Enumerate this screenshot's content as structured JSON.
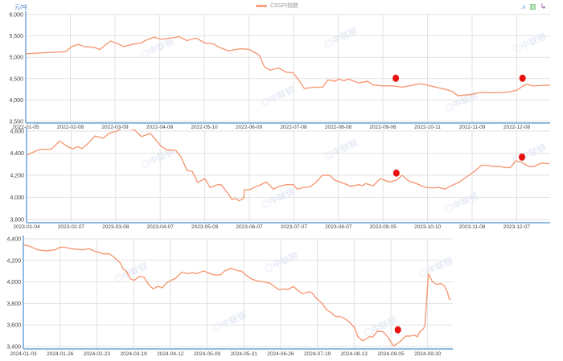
{
  "header": {
    "unit": "元/吨",
    "legend": "CSSPI指数",
    "watermark": "中联钢"
  },
  "toolbar": [
    {
      "name": "line-chart-icon",
      "glyph": "⩘",
      "color": "#5b9bd5"
    },
    {
      "name": "bar-chart-icon",
      "glyph": "▥",
      "color": "#4caf50"
    },
    {
      "name": "restore-icon",
      "glyph": "↳",
      "color": "#8e44ad"
    }
  ],
  "colors": {
    "line": "#f59a76",
    "marker": "#e8110f",
    "axis": "#6fa3d8",
    "grid": "#e2e2e2"
  },
  "chart_data": [
    {
      "type": "line",
      "title": "",
      "ylabel": "元/吨",
      "ylim": [
        3500,
        6000
      ],
      "yticks": [
        3500,
        4000,
        4500,
        5000,
        5500,
        6000
      ],
      "yticklabels": [
        "3,500",
        "4,000",
        "4,500",
        "5,000",
        "5,500",
        "6,000"
      ],
      "xticklabels": [
        "2022-01-05",
        "2022-02-08",
        "2022-03-09",
        "2022-04-08",
        "2022-05-10",
        "2022-06-09",
        "2022-07-08",
        "2022-08-08",
        "2022-09-06",
        "2022-10-11",
        "2022-11-09",
        "2022-12-08"
      ],
      "xmax": 11.75,
      "series": [
        {
          "name": "CSSPI指数",
          "points": [
            [
              0,
              5080
            ],
            [
              0.49,
              5110
            ],
            [
              0.89,
              5130
            ],
            [
              1.03,
              5250
            ],
            [
              1.18,
              5300
            ],
            [
              1.3,
              5250
            ],
            [
              1.54,
              5230
            ],
            [
              1.66,
              5180
            ],
            [
              1.9,
              5380
            ],
            [
              2.03,
              5330
            ],
            [
              2.19,
              5250
            ],
            [
              2.43,
              5310
            ],
            [
              2.59,
              5330
            ],
            [
              2.67,
              5390
            ],
            [
              2.88,
              5470
            ],
            [
              3.02,
              5420
            ],
            [
              3.24,
              5450
            ],
            [
              3.44,
              5480
            ],
            [
              3.61,
              5390
            ],
            [
              3.81,
              5450
            ],
            [
              4.02,
              5330
            ],
            [
              4.21,
              5310
            ],
            [
              4.34,
              5230
            ],
            [
              4.54,
              5150
            ],
            [
              4.82,
              5200
            ],
            [
              5.01,
              5180
            ],
            [
              5.23,
              5050
            ],
            [
              5.35,
              4770
            ],
            [
              5.47,
              4700
            ],
            [
              5.67,
              4750
            ],
            [
              5.83,
              4650
            ],
            [
              5.99,
              4640
            ],
            [
              6.12,
              4460
            ],
            [
              6.24,
              4270
            ],
            [
              6.48,
              4300
            ],
            [
              6.65,
              4300
            ],
            [
              6.77,
              4470
            ],
            [
              6.93,
              4440
            ],
            [
              7.01,
              4490
            ],
            [
              7.13,
              4450
            ],
            [
              7.23,
              4490
            ],
            [
              7.46,
              4400
            ],
            [
              7.66,
              4440
            ],
            [
              7.78,
              4350
            ],
            [
              8.02,
              4330
            ],
            [
              8.23,
              4330
            ],
            [
              8.43,
              4300
            ],
            [
              8.59,
              4330
            ],
            [
              8.83,
              4380
            ],
            [
              8.99,
              4350
            ],
            [
              9.4,
              4250
            ],
            [
              9.56,
              4200
            ],
            [
              9.68,
              4100
            ],
            [
              9.98,
              4130
            ],
            [
              10.21,
              4180
            ],
            [
              10.37,
              4170
            ],
            [
              10.78,
              4180
            ],
            [
              11.0,
              4230
            ],
            [
              11.1,
              4300
            ],
            [
              11.22,
              4370
            ],
            [
              11.35,
              4330
            ],
            [
              11.75,
              4350
            ]
          ]
        }
      ],
      "markers": [
        [
          8.29,
          4510
        ],
        [
          11.13,
          4510
        ]
      ]
    },
    {
      "type": "line",
      "title": "",
      "ylim": [
        3800,
        4600
      ],
      "yticks": [
        3800,
        4000,
        4200,
        4400,
        4600
      ],
      "yticklabels": [
        "3,800",
        "4,000",
        "4,200",
        "4,400",
        "4,600"
      ],
      "xticklabels": [
        "2023-01-04",
        "2023-02-07",
        "2023-03-08",
        "2023-04-07",
        "2023-05-09",
        "2023-06-07",
        "2023-07-07",
        "2023-08-07",
        "2023-09-05",
        "2023-10-10",
        "2023-11-08",
        "2023-12-07"
      ],
      "xmax": 11.74,
      "series": [
        {
          "name": "CSSPI指数",
          "points": [
            [
              0,
              4380
            ],
            [
              0.15,
              4410
            ],
            [
              0.31,
              4435
            ],
            [
              0.55,
              4435
            ],
            [
              0.75,
              4510
            ],
            [
              0.92,
              4460
            ],
            [
              1.04,
              4440
            ],
            [
              1.16,
              4460
            ],
            [
              1.24,
              4440
            ],
            [
              1.4,
              4495
            ],
            [
              1.53,
              4555
            ],
            [
              1.73,
              4535
            ],
            [
              1.85,
              4580
            ],
            [
              2.03,
              4600
            ],
            [
              2.18,
              4630
            ],
            [
              2.42,
              4610
            ],
            [
              2.58,
              4550
            ],
            [
              2.78,
              4580
            ],
            [
              2.95,
              4495
            ],
            [
              3.03,
              4460
            ],
            [
              3.15,
              4430
            ],
            [
              3.35,
              4425
            ],
            [
              3.47,
              4365
            ],
            [
              3.6,
              4245
            ],
            [
              3.72,
              4235
            ],
            [
              3.84,
              4135
            ],
            [
              4.0,
              4170
            ],
            [
              4.12,
              4090
            ],
            [
              4.29,
              4115
            ],
            [
              4.37,
              4115
            ],
            [
              4.53,
              4030
            ],
            [
              4.61,
              3980
            ],
            [
              4.69,
              3990
            ],
            [
              4.77,
              3970
            ],
            [
              4.87,
              3990
            ],
            [
              4.89,
              4070
            ],
            [
              5.02,
              4070
            ],
            [
              5.1,
              4090
            ],
            [
              5.26,
              4115
            ],
            [
              5.38,
              4140
            ],
            [
              5.54,
              4075
            ],
            [
              5.67,
              4100
            ],
            [
              5.83,
              4115
            ],
            [
              5.99,
              4115
            ],
            [
              6.07,
              4075
            ],
            [
              6.23,
              4090
            ],
            [
              6.36,
              4095
            ],
            [
              6.48,
              4130
            ],
            [
              6.64,
              4200
            ],
            [
              6.8,
              4200
            ],
            [
              6.92,
              4155
            ],
            [
              7.13,
              4125
            ],
            [
              7.29,
              4100
            ],
            [
              7.45,
              4115
            ],
            [
              7.53,
              4105
            ],
            [
              7.61,
              4125
            ],
            [
              7.78,
              4105
            ],
            [
              7.94,
              4170
            ],
            [
              8.14,
              4140
            ],
            [
              8.3,
              4155
            ],
            [
              8.43,
              4200
            ],
            [
              8.59,
              4145
            ],
            [
              8.75,
              4125
            ],
            [
              8.95,
              4090
            ],
            [
              9.12,
              4085
            ],
            [
              9.24,
              4090
            ],
            [
              9.4,
              4075
            ],
            [
              9.48,
              4095
            ],
            [
              9.72,
              4140
            ],
            [
              9.89,
              4190
            ],
            [
              10.05,
              4235
            ],
            [
              10.21,
              4290
            ],
            [
              10.33,
              4290
            ],
            [
              10.45,
              4280
            ],
            [
              10.62,
              4280
            ],
            [
              10.74,
              4270
            ],
            [
              10.86,
              4270
            ],
            [
              10.98,
              4330
            ],
            [
              11.1,
              4320
            ],
            [
              11.27,
              4280
            ],
            [
              11.39,
              4280
            ],
            [
              11.55,
              4310
            ],
            [
              11.74,
              4305
            ]
          ]
        }
      ],
      "markers": [
        [
          8.3,
          4220
        ],
        [
          11.12,
          4365
        ]
      ]
    },
    {
      "type": "line",
      "title": "",
      "ylim": [
        3400,
        4400
      ],
      "yticks": [
        3400,
        3600,
        3800,
        4000,
        4200,
        4400
      ],
      "yticklabels": [
        "3,400",
        "3,600",
        "3,800",
        "4,000",
        "4,200",
        "4,400"
      ],
      "xticklabels": [
        "2024-01-03",
        "2024-01-26",
        "2024-02-23",
        "2024-03-19",
        "2024-04-12",
        "2024-05-09",
        "2024-05-31",
        "2024-06-26",
        "2024-07-19",
        "2024-08-13",
        "2024-09-05",
        "2024-09-30"
      ],
      "xmax": 11.63,
      "series": [
        {
          "name": "CSSPI指数",
          "points": [
            [
              0,
              4343
            ],
            [
              0.16,
              4333
            ],
            [
              0.37,
              4300
            ],
            [
              0.49,
              4293
            ],
            [
              0.65,
              4288
            ],
            [
              0.89,
              4300
            ],
            [
              0.97,
              4318
            ],
            [
              1.1,
              4323
            ],
            [
              1.3,
              4308
            ],
            [
              1.62,
              4298
            ],
            [
              1.79,
              4308
            ],
            [
              1.95,
              4283
            ],
            [
              2.07,
              4275
            ],
            [
              2.19,
              4258
            ],
            [
              2.32,
              4263
            ],
            [
              2.44,
              4238
            ],
            [
              2.56,
              4200
            ],
            [
              2.64,
              4176
            ],
            [
              2.72,
              4119
            ],
            [
              2.8,
              4101
            ],
            [
              2.92,
              4027
            ],
            [
              3.01,
              4014
            ],
            [
              3.17,
              4052
            ],
            [
              3.29,
              4040
            ],
            [
              3.41,
              3977
            ],
            [
              3.53,
              3935
            ],
            [
              3.66,
              3958
            ],
            [
              3.78,
              3945
            ],
            [
              3.9,
              3990
            ],
            [
              4.02,
              4014
            ],
            [
              4.14,
              4032
            ],
            [
              4.31,
              4090
            ],
            [
              4.47,
              4077
            ],
            [
              4.59,
              4085
            ],
            [
              4.71,
              4077
            ],
            [
              4.91,
              4102
            ],
            [
              5.04,
              4082
            ],
            [
              5.2,
              4065
            ],
            [
              5.36,
              4065
            ],
            [
              5.48,
              4102
            ],
            [
              5.65,
              4126
            ],
            [
              5.85,
              4102
            ],
            [
              5.93,
              4102
            ],
            [
              6.05,
              4065
            ],
            [
              6.21,
              4027
            ],
            [
              6.38,
              4007
            ],
            [
              6.5,
              4002
            ],
            [
              6.7,
              3990
            ],
            [
              6.82,
              3960
            ],
            [
              6.95,
              3928
            ],
            [
              7.11,
              3935
            ],
            [
              7.19,
              3928
            ],
            [
              7.35,
              3958
            ],
            [
              7.47,
              3920
            ],
            [
              7.6,
              3890
            ],
            [
              7.76,
              3908
            ],
            [
              7.84,
              3903
            ],
            [
              7.96,
              3853
            ],
            [
              8.12,
              3803
            ],
            [
              8.25,
              3741
            ],
            [
              8.37,
              3716
            ],
            [
              8.49,
              3679
            ],
            [
              8.61,
              3679
            ],
            [
              8.77,
              3654
            ],
            [
              8.9,
              3617
            ],
            [
              9.02,
              3572
            ],
            [
              9.1,
              3492
            ],
            [
              9.22,
              3455
            ],
            [
              9.3,
              3463
            ],
            [
              9.42,
              3492
            ],
            [
              9.5,
              3487
            ],
            [
              9.63,
              3542
            ],
            [
              9.79,
              3537
            ],
            [
              9.91,
              3492
            ],
            [
              10.07,
              3405
            ],
            [
              10.19,
              3430
            ],
            [
              10.28,
              3455
            ],
            [
              10.4,
              3497
            ],
            [
              10.52,
              3497
            ],
            [
              10.64,
              3505
            ],
            [
              10.72,
              3492
            ],
            [
              10.8,
              3542
            ],
            [
              10.89,
              3567
            ],
            [
              10.93,
              3604
            ],
            [
              11.02,
              4077
            ],
            [
              11.13,
              4002
            ],
            [
              11.25,
              3977
            ],
            [
              11.36,
              3985
            ],
            [
              11.45,
              3965
            ],
            [
              11.54,
              3903
            ],
            [
              11.58,
              3846
            ],
            [
              11.63,
              3836
            ]
          ]
        }
      ],
      "markers": [
        [
          10.19,
          3555
        ]
      ]
    }
  ]
}
